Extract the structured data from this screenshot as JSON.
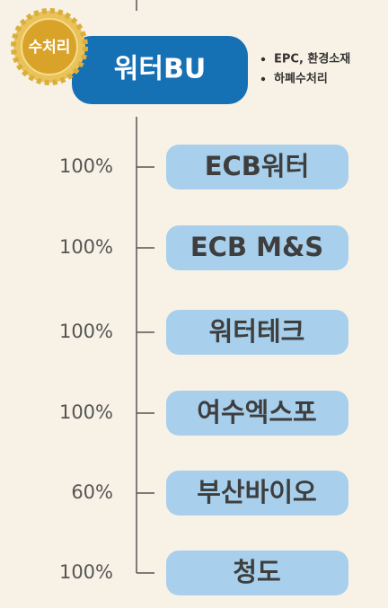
{
  "badge": "수처리",
  "header": {
    "title": "워터BU",
    "bullets": [
      "EPC, 환경소재",
      "하폐수처리"
    ]
  },
  "items": [
    {
      "percent": "100%",
      "name": "ECB워터"
    },
    {
      "percent": "100%",
      "name": "ECB M&S"
    },
    {
      "percent": "100%",
      "name": "워터테크"
    },
    {
      "percent": "100%",
      "name": "여수엑스포"
    },
    {
      "percent": "60%",
      "name": "부산바이오"
    },
    {
      "percent": "100%",
      "name": "청도"
    }
  ]
}
